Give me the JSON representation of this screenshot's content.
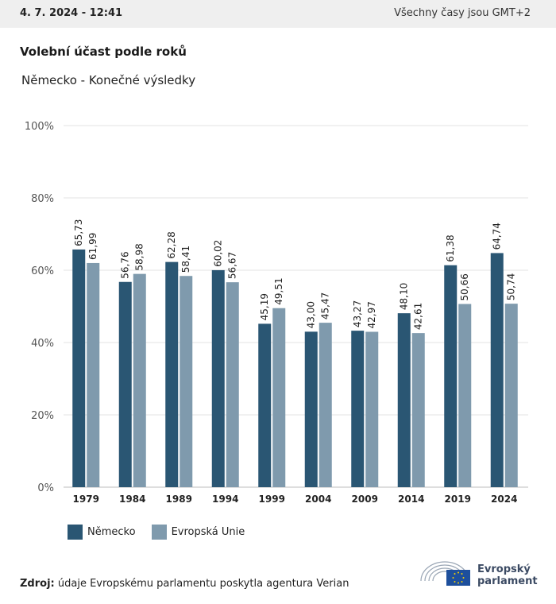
{
  "header": {
    "datetime": "4. 7. 2024 - 12:41",
    "timezone_note": "Všechny časy jsou GMT+2"
  },
  "title": "Volební účast podle roků",
  "subtitle": "Německo - Konečné výsledky",
  "colors": {
    "series1": "#2a5673",
    "series2": "#7f9aad",
    "grid": "#e3e3e3",
    "axis": "#bdbdbd"
  },
  "chart_data": {
    "type": "bar",
    "categories": [
      "1979",
      "1984",
      "1989",
      "1994",
      "1999",
      "2004",
      "2009",
      "2014",
      "2019",
      "2024"
    ],
    "series": [
      {
        "name": "Německo",
        "values": [
          65.73,
          56.76,
          62.28,
          60.02,
          45.19,
          43.0,
          43.27,
          48.1,
          61.38,
          64.74
        ]
      },
      {
        "name": "Evropská Unie",
        "values": [
          61.99,
          58.98,
          58.41,
          56.67,
          49.51,
          45.47,
          42.97,
          42.61,
          50.66,
          50.74
        ]
      }
    ],
    "ylim": [
      0,
      100
    ],
    "yticks": [
      "0%",
      "20%",
      "40%",
      "60%",
      "80%",
      "100%"
    ],
    "grid": true,
    "legend": "bottom-left"
  },
  "legend": {
    "items": [
      "Německo",
      "Evropská Unie"
    ]
  },
  "source": {
    "label": "Zdroj:",
    "text": "údaje Evropskému parlamentu poskytla agentura Verian"
  },
  "logo": {
    "line1": "Evropský",
    "line2": "parlament"
  }
}
